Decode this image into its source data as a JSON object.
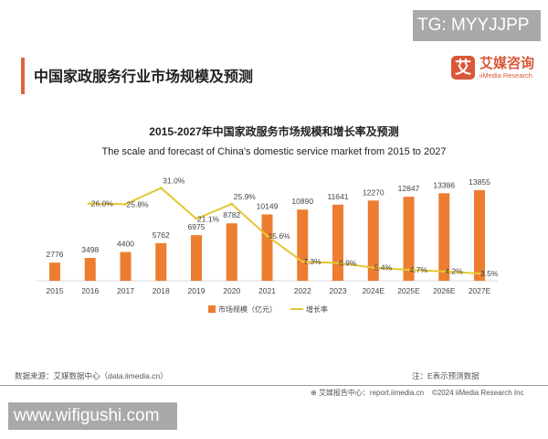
{
  "watermark_top": "TG: MYYJJPP",
  "watermark_bottom": "www.wifigushi.com",
  "page_title": "中国家政服务行业市场规模及预测",
  "logo": {
    "cn": "艾媒咨询",
    "en": "iiMedia Research",
    "mark": "艾"
  },
  "footer": {
    "source": "数据来源：艾媒数据中心（data.iimedia.cn）",
    "note": "注：E表示预测数据",
    "report": "艾媒报告中心：report.iimedia.cn",
    "copyright": "©2024  iiMedia Research  Inc"
  },
  "colors": {
    "bar": "#ed7d31",
    "line": "#e6c633",
    "accent": "#e0633a"
  },
  "chart_data": {
    "type": "bar",
    "title": "2015-2027年中国家政服务市场规模和增长率及预测",
    "subtitle": "The scale and forecast of China's domestic service market from 2015 to 2027",
    "categories": [
      "2015",
      "2016",
      "2017",
      "2018",
      "2019",
      "2020",
      "2021",
      "2022",
      "2023",
      "2024E",
      "2025E",
      "2026E",
      "2027E"
    ],
    "series": [
      {
        "name": "市场规模（亿元）",
        "type": "bar",
        "values": [
          2776,
          3498,
          4400,
          5762,
          6975,
          8782,
          10149,
          10890,
          11641,
          12270,
          12847,
          13386,
          13855
        ]
      },
      {
        "name": "增长率",
        "type": "line",
        "unit": "%",
        "values": [
          null,
          26.0,
          25.8,
          31.0,
          21.1,
          25.9,
          15.6,
          7.3,
          6.9,
          5.4,
          4.7,
          4.2,
          3.5
        ]
      }
    ],
    "legend": "bottom",
    "grid": false
  }
}
